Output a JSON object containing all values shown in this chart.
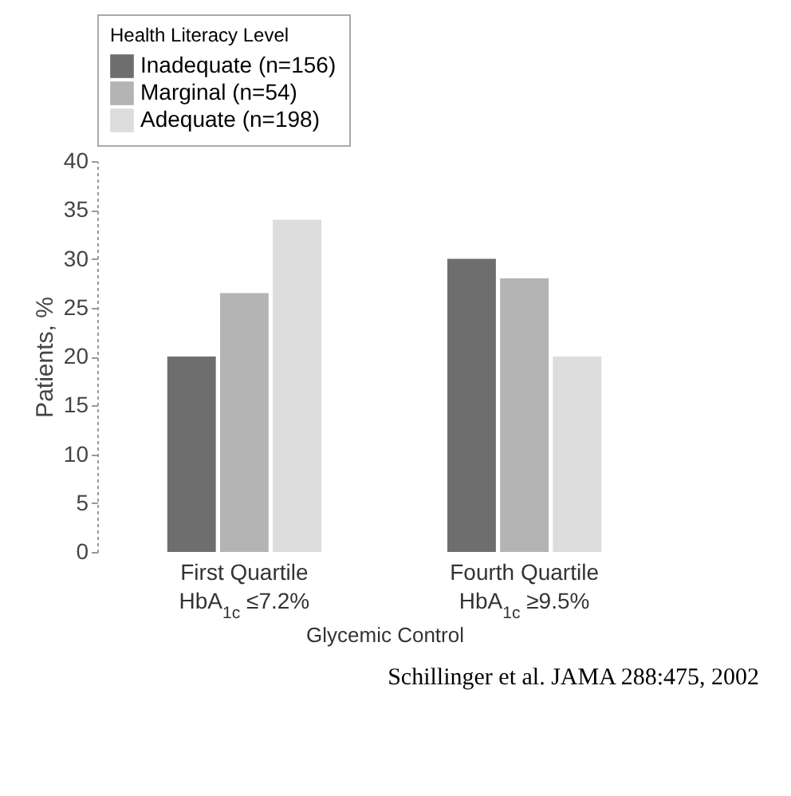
{
  "chart_data": {
    "type": "bar",
    "categories": [
      "First Quartile\nHbA$_{1c}$ ≤7.2%",
      "Fourth Quartile\nHbA$_{1c}$ ≥9.5%"
    ],
    "series": [
      {
        "name": "Inadequate (n=156)",
        "color": "#6e6e6e",
        "values": [
          20,
          30
        ]
      },
      {
        "name": "Marginal (n=54)",
        "color": "#b4b4b4",
        "values": [
          26.5,
          28
        ]
      },
      {
        "name": "Adequate (n=198)",
        "color": "#dcdcdc",
        "values": [
          34,
          20
        ]
      }
    ],
    "xlabel": "Glycemic Control",
    "ylabel": "Patients, %",
    "legend_title": "Health Literacy Level",
    "ylim": [
      0,
      40
    ],
    "yticks": [
      0,
      5,
      10,
      15,
      20,
      25,
      30,
      35,
      40
    ],
    "legend": "top",
    "grid": false,
    "annotations": [
      "Schillinger et al. JAMA 288:475, 2002"
    ]
  }
}
